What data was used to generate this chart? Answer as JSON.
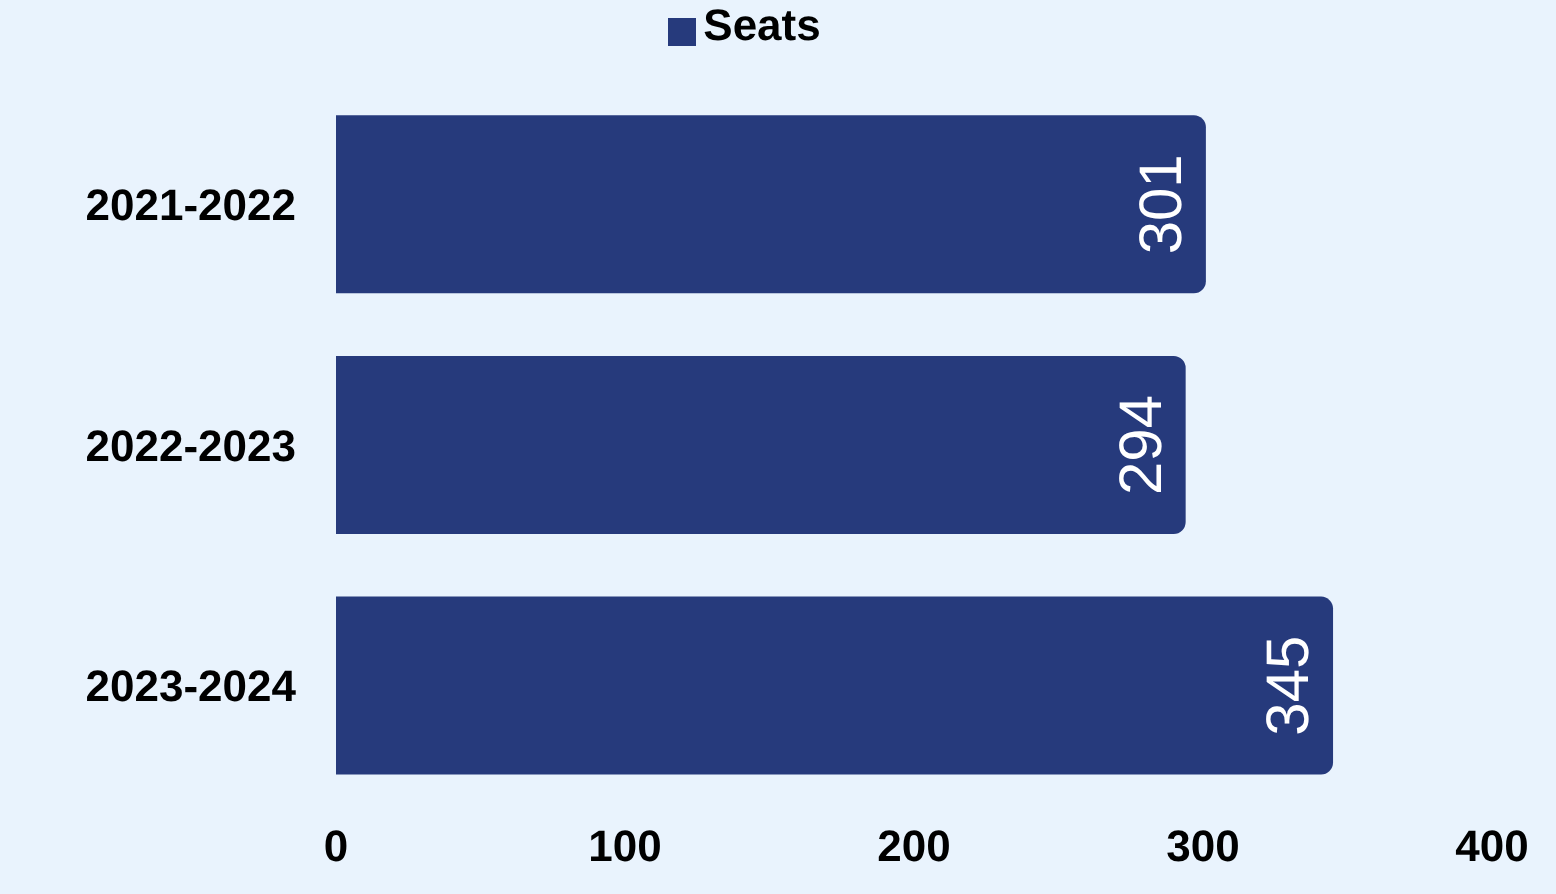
{
  "chart_data": {
    "type": "bar",
    "orientation": "horizontal",
    "categories": [
      "2021-2022",
      "2022-2023",
      "2023-2024"
    ],
    "series": [
      {
        "name": "Seats",
        "color": "#263a7c",
        "values": [
          301,
          294,
          345
        ]
      }
    ],
    "xlim": [
      0,
      400
    ],
    "xticks": [
      0,
      100,
      200,
      300,
      400
    ],
    "data_labels": true,
    "legend": "top",
    "grid": false
  }
}
